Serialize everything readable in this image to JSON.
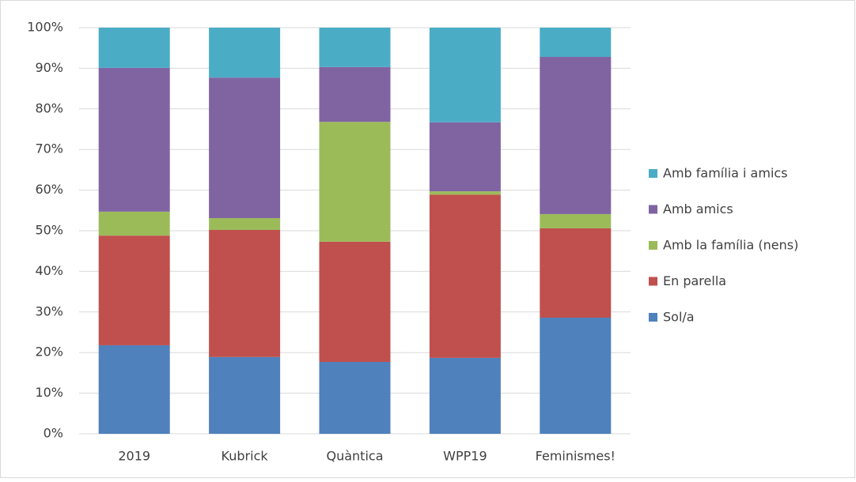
{
  "chart_data": {
    "type": "stacked_bar",
    "categories": [
      "2019",
      "Kubrick",
      "Quàntica",
      "WPP19",
      "Feminismes!"
    ],
    "series": [
      {
        "name": "Sol/a",
        "color": "#4f81bd",
        "values": [
          21.8,
          18.9,
          17.7,
          18.7,
          28.6
        ]
      },
      {
        "name": "En parella",
        "color": "#c0504d",
        "values": [
          27.0,
          31.3,
          29.6,
          40.2,
          22.0
        ]
      },
      {
        "name": "Amb la família (nens)",
        "color": "#9bbb59",
        "values": [
          5.9,
          2.9,
          29.5,
          0.8,
          3.5
        ]
      },
      {
        "name": "Amb amics",
        "color": "#8064a2",
        "values": [
          35.4,
          34.6,
          13.5,
          17.0,
          38.7
        ]
      },
      {
        "name": "Amb família i amics",
        "color": "#4bacc6",
        "values": [
          9.9,
          12.3,
          9.7,
          23.3,
          7.2
        ]
      }
    ],
    "ylim": [
      0,
      100
    ],
    "yticks": [
      {
        "value": 0,
        "label": "0%"
      },
      {
        "value": 10,
        "label": "10%"
      },
      {
        "value": 20,
        "label": "20%"
      },
      {
        "value": 30,
        "label": "30%"
      },
      {
        "value": 40,
        "label": "40%"
      },
      {
        "value": 50,
        "label": "50%"
      },
      {
        "value": 60,
        "label": "60%"
      },
      {
        "value": 70,
        "label": "70%"
      },
      {
        "value": 80,
        "label": "80%"
      },
      {
        "value": 90,
        "label": "90%"
      },
      {
        "value": 100,
        "label": "100%"
      }
    ],
    "grid": true,
    "legend": "right"
  }
}
